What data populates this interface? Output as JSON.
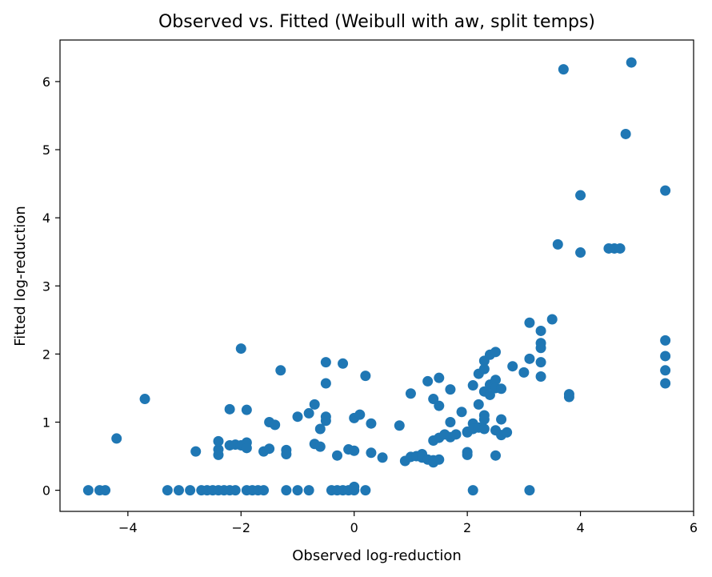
{
  "chart_data": {
    "type": "scatter",
    "title": "Observed vs. Fitted (Weibull with aw, split temps)",
    "xlabel": "Observed log-reduction",
    "ylabel": "Fitted log-reduction",
    "xlim": [
      -5.2,
      6.0
    ],
    "ylim": [
      -0.31,
      6.61
    ],
    "xticks": [
      -4,
      -2,
      0,
      2,
      4,
      6
    ],
    "xtick_labels": [
      "−4",
      "−2",
      "0",
      "2",
      "4",
      "6"
    ],
    "yticks": [
      0,
      1,
      2,
      3,
      4,
      5,
      6
    ],
    "ytick_labels": [
      "0",
      "1",
      "2",
      "3",
      "4",
      "5",
      "6"
    ],
    "grid": false,
    "legend": "none",
    "marker_color": "#1f77b4",
    "series": [
      {
        "points": [
          [
            -4.7,
            0
          ],
          [
            -4.5,
            0
          ],
          [
            -4.4,
            0
          ],
          [
            -4.2,
            0.76
          ],
          [
            -3.7,
            1.34
          ],
          [
            -3.3,
            0
          ],
          [
            -3.1,
            0
          ],
          [
            -2.9,
            0
          ],
          [
            -2.8,
            0.57
          ],
          [
            -2.7,
            0
          ],
          [
            -2.6,
            0
          ],
          [
            -2.5,
            0
          ],
          [
            -2.4,
            0
          ],
          [
            -2.4,
            0.52
          ],
          [
            -2.4,
            0.6
          ],
          [
            -2.4,
            0.72
          ],
          [
            -2.3,
            0
          ],
          [
            -2.2,
            0
          ],
          [
            -2.2,
            0.66
          ],
          [
            -2.2,
            1.19
          ],
          [
            -2.1,
            0.67
          ],
          [
            -2.1,
            0
          ],
          [
            -2.0,
            0.66
          ],
          [
            -2.0,
            2.08
          ],
          [
            -1.9,
            0.7
          ],
          [
            -1.9,
            0.62
          ],
          [
            -1.9,
            1.18
          ],
          [
            -1.9,
            0
          ],
          [
            -1.8,
            0
          ],
          [
            -1.7,
            0
          ],
          [
            -1.6,
            0
          ],
          [
            -1.6,
            0.57
          ],
          [
            -1.5,
            0.61
          ],
          [
            -1.5,
            1.0
          ],
          [
            -1.4,
            0.96
          ],
          [
            -1.3,
            1.76
          ],
          [
            -1.2,
            0.53
          ],
          [
            -1.2,
            0.59
          ],
          [
            -1.2,
            0
          ],
          [
            -1.0,
            1.08
          ],
          [
            -1.0,
            0
          ],
          [
            -0.8,
            1.13
          ],
          [
            -0.8,
            0
          ],
          [
            -0.7,
            0.68
          ],
          [
            -0.7,
            1.26
          ],
          [
            -0.6,
            0.64
          ],
          [
            -0.6,
            0.9
          ],
          [
            -0.5,
            1.88
          ],
          [
            -0.5,
            1.57
          ],
          [
            -0.5,
            1.08
          ],
          [
            -0.5,
            1.02
          ],
          [
            -0.4,
            0
          ],
          [
            -0.3,
            0
          ],
          [
            -0.3,
            0.51
          ],
          [
            -0.2,
            1.86
          ],
          [
            -0.2,
            0
          ],
          [
            -0.1,
            0.6
          ],
          [
            -0.1,
            0
          ],
          [
            0.0,
            0.58
          ],
          [
            0.0,
            0
          ],
          [
            0.0,
            0.05
          ],
          [
            0.0,
            1.06
          ],
          [
            0.1,
            1.11
          ],
          [
            0.2,
            1.68
          ],
          [
            0.2,
            0
          ],
          [
            0.3,
            0.98
          ],
          [
            0.3,
            0.55
          ],
          [
            0.5,
            0.48
          ],
          [
            0.8,
            0.95
          ],
          [
            0.9,
            0.43
          ],
          [
            1.0,
            0.49
          ],
          [
            1.0,
            1.42
          ],
          [
            1.1,
            0.5
          ],
          [
            1.2,
            0.53
          ],
          [
            1.2,
            0.48
          ],
          [
            1.3,
            1.6
          ],
          [
            1.3,
            0.45
          ],
          [
            1.4,
            1.34
          ],
          [
            1.4,
            0.73
          ],
          [
            1.4,
            0.44
          ],
          [
            1.4,
            0.41
          ],
          [
            1.5,
            1.65
          ],
          [
            1.5,
            1.24
          ],
          [
            1.5,
            0.77
          ],
          [
            1.5,
            0.45
          ],
          [
            1.6,
            0.82
          ],
          [
            1.7,
            1.48
          ],
          [
            1.7,
            1.0
          ],
          [
            1.7,
            0.78
          ],
          [
            1.8,
            0.82
          ],
          [
            1.9,
            1.15
          ],
          [
            2.0,
            0.85
          ],
          [
            2.0,
            0.56
          ],
          [
            2.0,
            0.52
          ],
          [
            2.0,
            0.86
          ],
          [
            2.1,
            1.54
          ],
          [
            2.1,
            0.98
          ],
          [
            2.1,
            0.9
          ],
          [
            2.1,
            0
          ],
          [
            2.2,
            0.92
          ],
          [
            2.2,
            1.26
          ],
          [
            2.2,
            1.71
          ],
          [
            2.3,
            1.78
          ],
          [
            2.3,
            1.9
          ],
          [
            2.3,
            1.45
          ],
          [
            2.3,
            1.1
          ],
          [
            2.3,
            1.04
          ],
          [
            2.3,
            0.9
          ],
          [
            2.4,
            1.99
          ],
          [
            2.4,
            1.55
          ],
          [
            2.4,
            1.4
          ],
          [
            2.5,
            2.03
          ],
          [
            2.5,
            1.62
          ],
          [
            2.5,
            1.5
          ],
          [
            2.5,
            0.88
          ],
          [
            2.5,
            0.51
          ],
          [
            2.6,
            1.49
          ],
          [
            2.6,
            1.04
          ],
          [
            2.6,
            0.81
          ],
          [
            2.7,
            0.85
          ],
          [
            2.8,
            1.82
          ],
          [
            3.0,
            1.73
          ],
          [
            3.1,
            2.46
          ],
          [
            3.1,
            1.93
          ],
          [
            3.1,
            0
          ],
          [
            3.3,
            2.34
          ],
          [
            3.3,
            2.16
          ],
          [
            3.3,
            2.09
          ],
          [
            3.3,
            1.88
          ],
          [
            3.3,
            1.67
          ],
          [
            3.5,
            2.51
          ],
          [
            3.6,
            3.61
          ],
          [
            3.7,
            6.18
          ],
          [
            3.8,
            1.37
          ],
          [
            3.8,
            1.41
          ],
          [
            4.0,
            4.33
          ],
          [
            4.0,
            3.49
          ],
          [
            4.5,
            3.55
          ],
          [
            4.6,
            3.55
          ],
          [
            4.7,
            3.55
          ],
          [
            4.8,
            5.23
          ],
          [
            4.9,
            6.28
          ],
          [
            5.5,
            4.4
          ],
          [
            5.5,
            2.2
          ],
          [
            5.5,
            1.97
          ],
          [
            5.5,
            1.76
          ],
          [
            5.5,
            1.57
          ]
        ]
      }
    ]
  }
}
